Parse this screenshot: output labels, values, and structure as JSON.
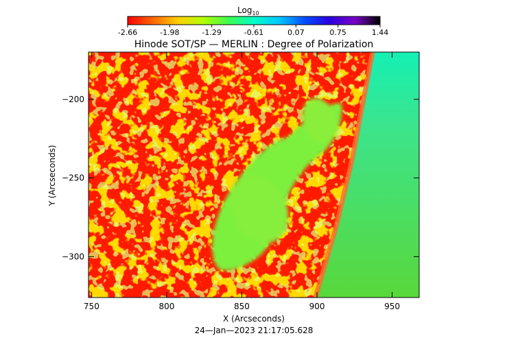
{
  "colorbar": {
    "label": "Log",
    "label_sub": "10",
    "ticks": [
      "-2.66",
      "-1.98",
      "-1.29",
      "-0.61",
      "0.07",
      "0.75",
      "1.44"
    ],
    "range": [
      -2.66,
      1.44
    ],
    "colors": [
      "#ff0000",
      "#ff6600",
      "#ffd000",
      "#b4ff00",
      "#3cff50",
      "#00ffc8",
      "#00c8ff",
      "#0050ff",
      "#2a00e0",
      "#7a00c8",
      "#000000"
    ]
  },
  "chart_data": {
    "type": "heatmap",
    "title": "Hinode SOT/SP — MERLIN : Degree of Polarization",
    "xlabel": "X (Arcseconds)",
    "ylabel": "Y (Arcseconds)",
    "xlim": [
      748,
      968
    ],
    "ylim": [
      -326,
      -170
    ],
    "x_ticks": [
      750,
      800,
      850,
      900,
      950
    ],
    "x_tick_labels": [
      "750",
      "800",
      "850",
      "900",
      "950"
    ],
    "y_ticks": [
      -200,
      -250,
      -300
    ],
    "y_tick_labels": [
      "−200",
      "−250",
      "−300"
    ],
    "regions": [
      {
        "name": "background",
        "value": -2.66,
        "color": "#ff1a00"
      },
      {
        "name": "scattered plage",
        "value": -1.8,
        "color": "#ffb000"
      },
      {
        "name": "sunspot",
        "value": -1.0,
        "color": "#7cf03c"
      },
      {
        "name": "off-limb sky",
        "value": -0.9,
        "color": "#4fdc2e"
      },
      {
        "name": "off-limb upper",
        "value": -0.4,
        "color": "#18f0b0"
      }
    ],
    "limb_points": [
      [
        937,
        -170
      ],
      [
        931,
        -200
      ],
      [
        923,
        -240
      ],
      [
        913,
        -280
      ],
      [
        899,
        -326
      ]
    ]
  },
  "footer": {
    "timestamp": "24—Jan—2023 21:17:05.628"
  }
}
